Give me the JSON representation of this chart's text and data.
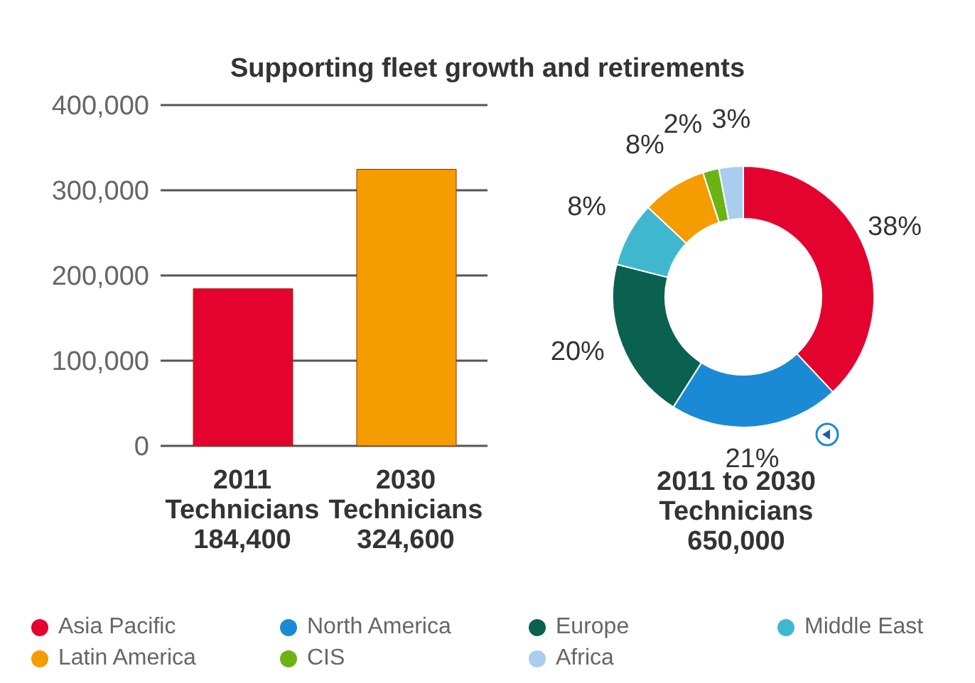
{
  "chart_data": [
    {
      "type": "bar",
      "title": "Supporting fleet growth and retirements",
      "categories": [
        "2011 Technicians",
        "2030 Technicians"
      ],
      "values": [
        184400,
        324600
      ],
      "colors": [
        "#e4032e",
        "#f59c00"
      ],
      "ylim": [
        0,
        400000
      ],
      "yticks": [
        {
          "value": 0,
          "label": "0"
        },
        {
          "value": 100000,
          "label": "100,000"
        },
        {
          "value": 200000,
          "label": "200,000"
        },
        {
          "value": 300000,
          "label": "300,000"
        },
        {
          "value": 400000,
          "label": "400,000"
        }
      ],
      "grid": "y",
      "value_labels": [
        "184,400",
        "324,600"
      ]
    },
    {
      "type": "donut",
      "xlabel": "2011 to 2030 Technicians",
      "annotations": [
        "650,000"
      ],
      "categories": [
        "Asia Pacific",
        "North America",
        "Europe",
        "Middle East",
        "Latin America",
        "CIS",
        "Africa"
      ],
      "values": [
        38,
        21,
        20,
        8,
        8,
        2,
        3
      ],
      "value_labels": [
        "38%",
        "21%",
        "20%",
        "8%",
        "8%",
        "2%",
        "3%"
      ],
      "colors": [
        "#e4032e",
        "#1a8ad4",
        "#0b6150",
        "#3fb8cf",
        "#f59c00",
        "#6bb315",
        "#a9cdee"
      ],
      "legend": "bottom"
    }
  ]
}
